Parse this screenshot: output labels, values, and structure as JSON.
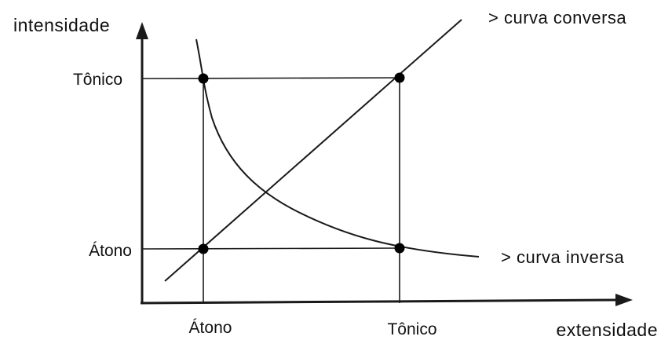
{
  "axes": {
    "y_title": "intensidade",
    "x_title": "extensidade"
  },
  "y_ticks": [
    "Tônico",
    "Átono"
  ],
  "x_ticks": [
    "Átono",
    "Tônico"
  ],
  "curves": {
    "conversa_label": "> curva conversa",
    "inversa_label": "> curva inversa"
  },
  "colors": {
    "ink": "#1a1a1a",
    "background": "#ffffff"
  }
}
